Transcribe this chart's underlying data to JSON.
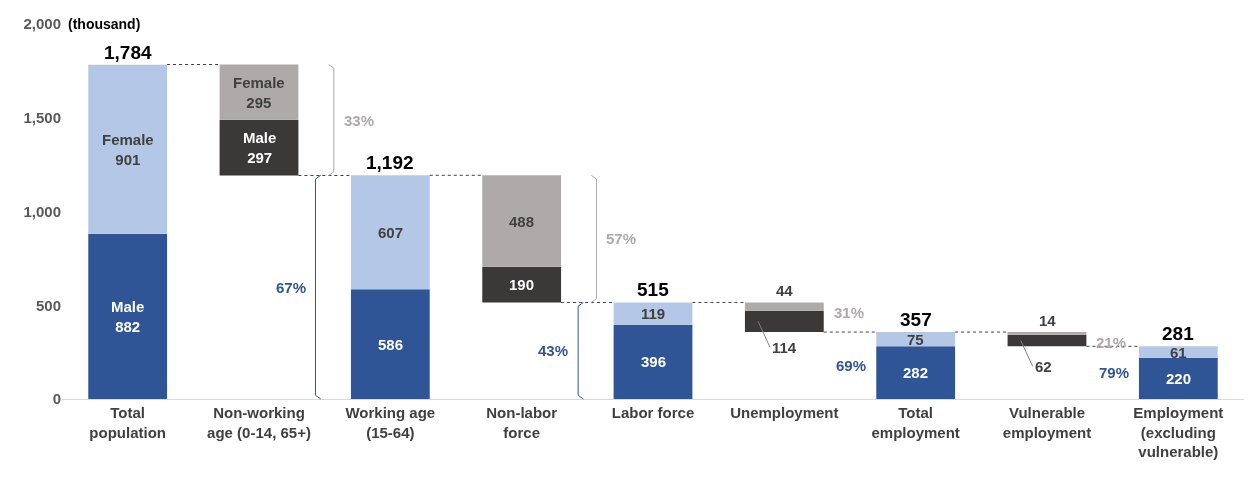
{
  "chart_data": {
    "type": "bar",
    "ylabel": "(thousand)",
    "categories": [
      "Total\npopulation",
      "Non-working\nage (0-14, 65+)",
      "Working age\n(15-64)",
      "Non-labor\nforce",
      "Labor force",
      "Unemployment",
      "Total\nemployment",
      "Vulnerable\nemployment",
      "Employment\n(excluding\nvulnerable)"
    ],
    "series": [
      {
        "name": "Male",
        "colors": [
          "#2f5597",
          "#3b3838",
          "#2f5597",
          "#3b3838",
          "#2f5597",
          "#3b3838",
          "#2f5597",
          "#3b3838",
          "#2f5597"
        ],
        "base": [
          0,
          1192,
          0,
          515,
          0,
          357,
          0,
          281,
          0
        ],
        "values": [
          882,
          297,
          586,
          190,
          396,
          114,
          282,
          62,
          220
        ]
      },
      {
        "name": "Female",
        "colors": [
          "#b4c7e7",
          "#aeaaaa",
          "#b4c7e7",
          "#aeaaaa",
          "#b4c7e7",
          "#aeaaaa",
          "#b4c7e7",
          "#aeaaaa",
          "#b4c7e7"
        ],
        "base": [
          882,
          1489,
          586,
          705,
          396,
          471,
          282,
          343,
          220
        ],
        "values": [
          901,
          295,
          607,
          488,
          119,
          44,
          75,
          14,
          61
        ]
      }
    ],
    "data_labels": true,
    "totals": [
      "1,784",
      null,
      "1,192",
      null,
      "515",
      null,
      "357",
      null,
      "281"
    ],
    "annotations": [
      "33%",
      "67%",
      "57%",
      "43%",
      "31%",
      "69%",
      "21%",
      "79%"
    ],
    "ylim": [
      0,
      2000
    ],
    "yticks": [
      0,
      500,
      {
        "value": 1000,
        "label": "1,000"
      },
      {
        "value": 1500,
        "label": "1,500"
      },
      {
        "value": 2000,
        "label": "2,000"
      }
    ],
    "grid": false,
    "legend": false
  }
}
